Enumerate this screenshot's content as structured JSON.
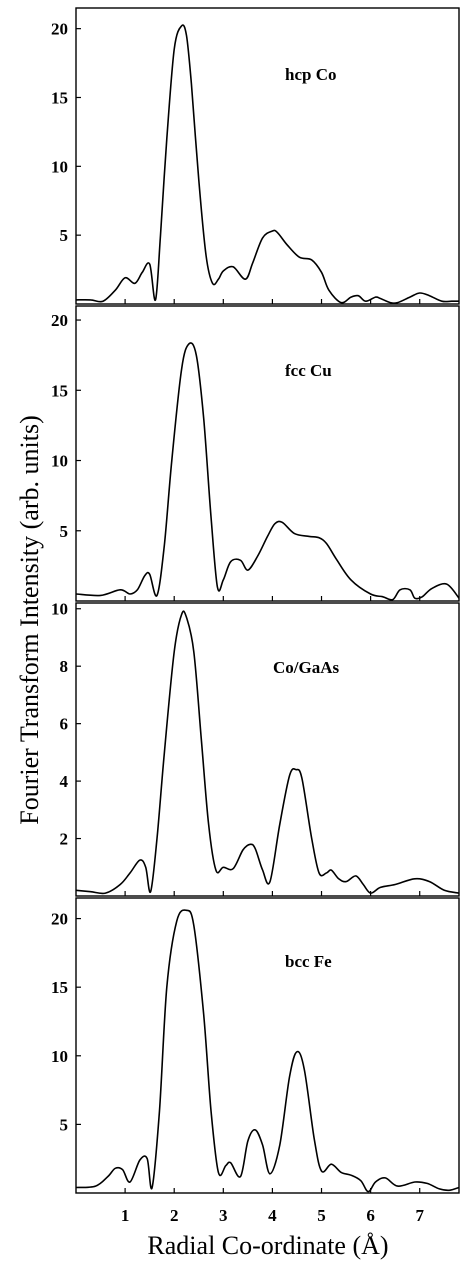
{
  "chart_data": {
    "type": "line",
    "ylabel": "Fourier Transform Intensity (arb. units)",
    "xlabel": "Radial Co-ordinate (Å)",
    "xlim": [
      0,
      7.8
    ],
    "xticks": [
      1,
      2,
      3,
      4,
      5,
      6,
      7
    ],
    "panels": [
      {
        "label": "hcp Co",
        "ylim": [
          0,
          21.5
        ],
        "yticks": [
          5,
          10,
          15,
          20
        ],
        "x": [
          0,
          0.3,
          0.55,
          0.8,
          1.0,
          1.2,
          1.35,
          1.5,
          1.62,
          1.72,
          1.85,
          2.0,
          2.15,
          2.25,
          2.35,
          2.5,
          2.65,
          2.78,
          2.9,
          3.0,
          3.2,
          3.45,
          3.6,
          3.8,
          4.0,
          4.1,
          4.3,
          4.55,
          4.8,
          5.0,
          5.15,
          5.4,
          5.6,
          5.75,
          5.9,
          6.1,
          6.2,
          6.4,
          6.55,
          6.8,
          7.0,
          7.2,
          7.45,
          7.65,
          7.8
        ],
        "values": [
          0.3,
          0.3,
          0.2,
          1.0,
          1.9,
          1.5,
          2.3,
          2.9,
          0.3,
          5.0,
          12.0,
          18.5,
          20.2,
          19.5,
          16.0,
          9.0,
          3.5,
          1.5,
          1.8,
          2.4,
          2.7,
          1.8,
          3.0,
          4.8,
          5.3,
          5.2,
          4.3,
          3.4,
          3.2,
          2.3,
          1.0,
          0.1,
          0.5,
          0.6,
          0.2,
          0.5,
          0.4,
          0.1,
          0.1,
          0.5,
          0.8,
          0.6,
          0.2,
          0.2,
          0.2
        ]
      },
      {
        "label": "fcc Cu",
        "ylim": [
          0,
          21
        ],
        "yticks": [
          5,
          10,
          15,
          20
        ],
        "x": [
          0,
          0.5,
          0.9,
          1.1,
          1.25,
          1.4,
          1.5,
          1.65,
          1.8,
          1.95,
          2.15,
          2.3,
          2.45,
          2.6,
          2.75,
          2.88,
          3.0,
          3.15,
          3.35,
          3.5,
          3.7,
          3.9,
          4.05,
          4.2,
          4.45,
          4.75,
          4.95,
          5.1,
          5.3,
          5.6,
          6.0,
          6.25,
          6.45,
          6.6,
          6.8,
          6.9,
          7.05,
          7.25,
          7.55,
          7.8
        ],
        "values": [
          0.5,
          0.4,
          0.8,
          0.5,
          0.8,
          1.8,
          1.9,
          0.4,
          4.0,
          10.0,
          16.5,
          18.3,
          17.5,
          13.0,
          6.0,
          1.0,
          1.5,
          2.8,
          2.9,
          2.2,
          3.2,
          4.6,
          5.5,
          5.6,
          4.8,
          4.6,
          4.5,
          4.1,
          3.0,
          1.5,
          0.5,
          0.3,
          0.1,
          0.8,
          0.8,
          0.2,
          0.3,
          0.9,
          1.2,
          0.2
        ]
      },
      {
        "label": "Co/GaAs",
        "ylim": [
          0,
          10.2
        ],
        "yticks": [
          2,
          4,
          6,
          8,
          10
        ],
        "x": [
          0,
          0.3,
          0.6,
          0.9,
          1.1,
          1.3,
          1.42,
          1.52,
          1.65,
          1.8,
          2.0,
          2.15,
          2.25,
          2.4,
          2.55,
          2.7,
          2.85,
          3.0,
          3.2,
          3.4,
          3.55,
          3.65,
          3.8,
          3.95,
          4.15,
          4.35,
          4.48,
          4.6,
          4.8,
          4.95,
          5.1,
          5.2,
          5.35,
          5.5,
          5.7,
          5.85,
          6.0,
          6.2,
          6.5,
          6.9,
          7.2,
          7.5,
          7.8
        ],
        "values": [
          0.2,
          0.15,
          0.1,
          0.4,
          0.8,
          1.25,
          1.0,
          0.15,
          2.0,
          5.0,
          8.5,
          9.8,
          9.7,
          8.5,
          5.5,
          2.5,
          0.9,
          1.0,
          0.95,
          1.6,
          1.8,
          1.65,
          0.9,
          0.5,
          2.5,
          4.2,
          4.4,
          4.1,
          2.0,
          0.8,
          0.8,
          0.9,
          0.6,
          0.5,
          0.7,
          0.4,
          0.1,
          0.3,
          0.4,
          0.6,
          0.5,
          0.2,
          0.1
        ]
      },
      {
        "label": "bcc Fe",
        "ylim": [
          0,
          21.5
        ],
        "yticks": [
          5,
          10,
          15,
          20
        ],
        "x": [
          0,
          0.4,
          0.65,
          0.8,
          0.95,
          1.1,
          1.3,
          1.45,
          1.55,
          1.7,
          1.85,
          2.05,
          2.25,
          2.4,
          2.6,
          2.75,
          2.9,
          3.05,
          3.15,
          3.35,
          3.5,
          3.65,
          3.8,
          3.95,
          4.15,
          4.35,
          4.5,
          4.65,
          4.85,
          5.0,
          5.2,
          5.4,
          5.6,
          5.8,
          5.95,
          6.1,
          6.3,
          6.55,
          6.9,
          7.15,
          7.4,
          7.6,
          7.8
        ],
        "values": [
          0.4,
          0.5,
          1.2,
          1.8,
          1.7,
          0.8,
          2.4,
          2.5,
          0.4,
          6.0,
          15.0,
          19.8,
          20.6,
          19.5,
          13.0,
          6.0,
          1.5,
          2.0,
          2.2,
          1.2,
          3.8,
          4.6,
          3.5,
          1.4,
          3.5,
          8.5,
          10.3,
          9.0,
          4.0,
          1.6,
          2.1,
          1.5,
          1.3,
          0.9,
          0.1,
          0.8,
          1.1,
          0.5,
          0.8,
          0.7,
          0.3,
          0.2,
          0.4
        ]
      }
    ]
  }
}
